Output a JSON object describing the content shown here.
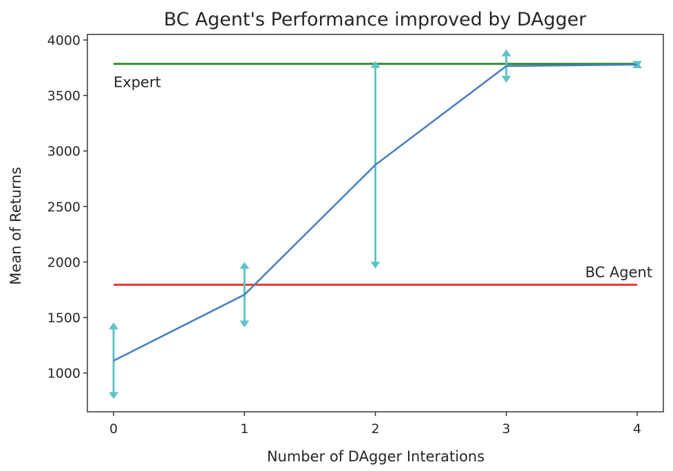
{
  "chart_data": {
    "type": "line",
    "title": "BC Agent's Performance improved by DAgger",
    "xlabel": "Number of DAgger Interations",
    "ylabel": "Mean of Returns",
    "xlim": [
      -0.2,
      4.2
    ],
    "ylim": [
      650,
      4050
    ],
    "xticks": [
      0,
      1,
      2,
      3,
      4
    ],
    "yticks": [
      1000,
      1500,
      2000,
      2500,
      3000,
      3500,
      4000
    ],
    "grid": false,
    "series": [
      {
        "x": [
          0,
          1,
          2,
          3,
          4
        ],
        "values": [
          1110,
          1705,
          2875,
          3765,
          3778
        ],
        "error": [
          345,
          295,
          935,
          150,
          30
        ],
        "color": "#4a7fc0",
        "errorbar_color": "#5fc4c8"
      }
    ],
    "reference_lines": [
      {
        "label": "Expert",
        "y": 3785,
        "x_range": [
          0,
          4
        ],
        "color": "#2f8a2f",
        "label_anchor": "bottom-left"
      },
      {
        "label": "BC Agent",
        "y": 1795,
        "x_range": [
          0,
          4
        ],
        "color": "#e8392f",
        "label_anchor": "top-right"
      }
    ]
  }
}
